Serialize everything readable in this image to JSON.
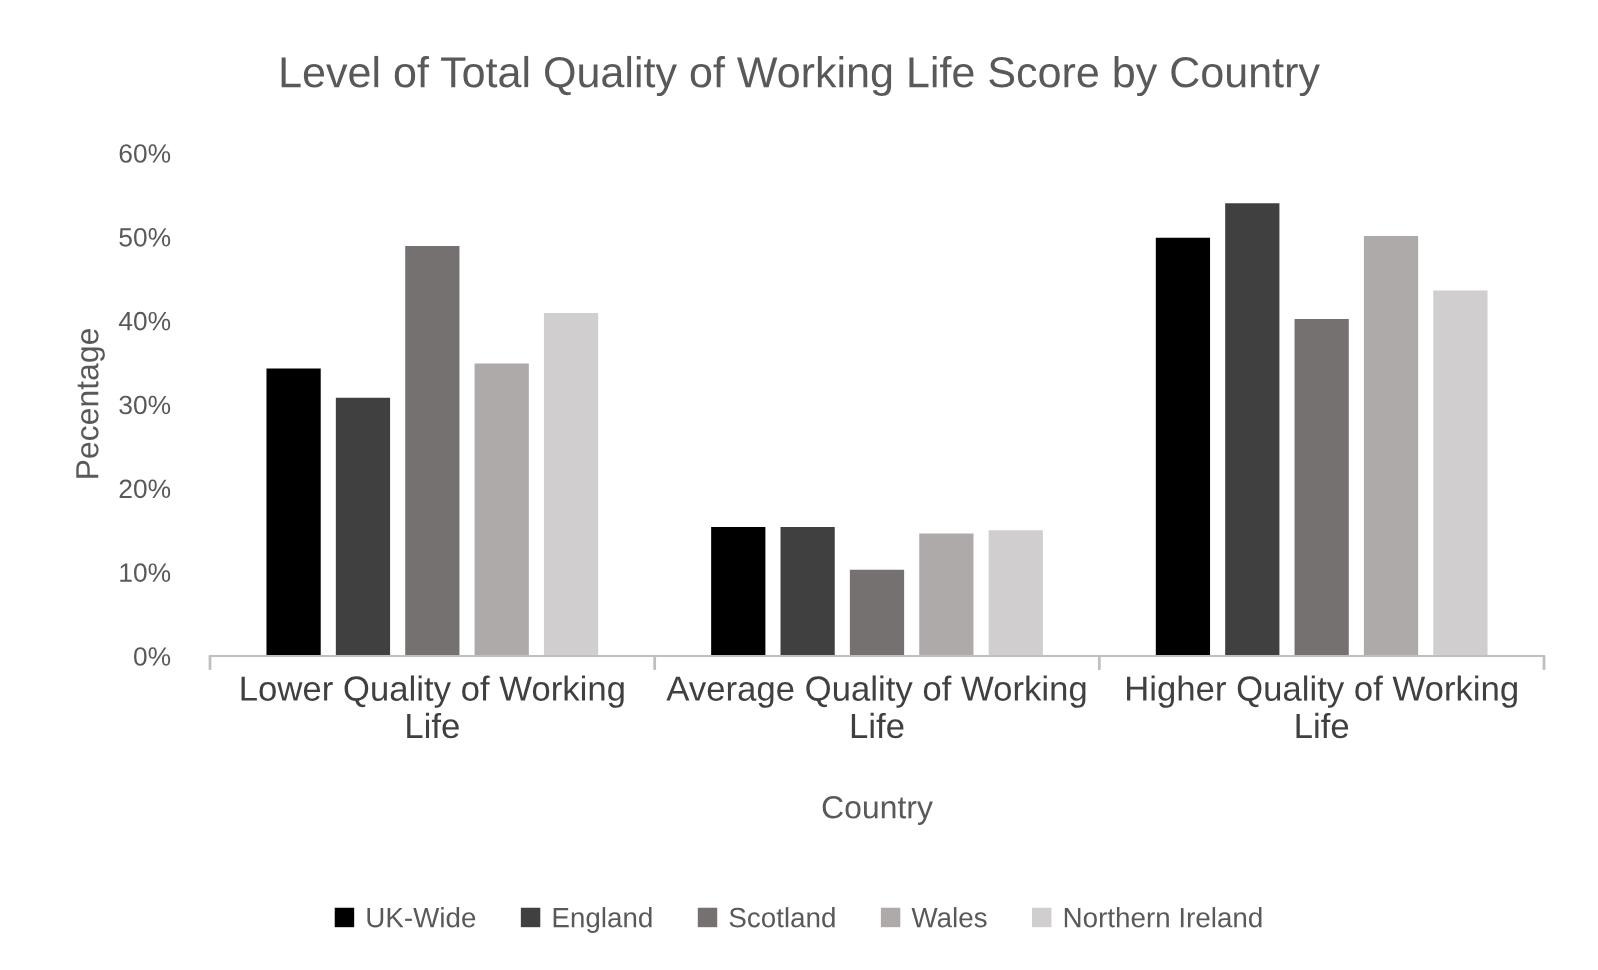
{
  "chart_data": {
    "type": "bar",
    "title": "Level of Total Quality of Working Life Score by Country",
    "xlabel": "Country",
    "ylabel": "Pecentage",
    "categories": [
      "Lower Quality of Working Life",
      "Average Quality of Working Life",
      "Higher Quality of Working Life"
    ],
    "series": [
      {
        "name": "UK-Wide",
        "color": "#000000",
        "values": [
          34.3,
          15.4,
          49.9
        ]
      },
      {
        "name": "England",
        "color": "#404040",
        "values": [
          30.8,
          15.4,
          54.0
        ]
      },
      {
        "name": "Scotland",
        "color": "#767171",
        "values": [
          48.9,
          10.3,
          40.2
        ]
      },
      {
        "name": "Wales",
        "color": "#aeaaaa",
        "values": [
          34.9,
          14.6,
          50.1
        ]
      },
      {
        "name": "Northern Ireland",
        "color": "#d0cece",
        "values": [
          40.9,
          15.0,
          43.6
        ]
      }
    ],
    "ylim": [
      0,
      60
    ],
    "yticks": [
      {
        "value": 0,
        "label": "0%"
      },
      {
        "value": 10,
        "label": "10%"
      },
      {
        "value": 20,
        "label": "20%"
      },
      {
        "value": 30,
        "label": "30%"
      },
      {
        "value": 40,
        "label": "40%"
      },
      {
        "value": 50,
        "label": "50%"
      },
      {
        "value": 60,
        "label": "60%"
      }
    ],
    "grid": false,
    "legend": "bottom"
  }
}
